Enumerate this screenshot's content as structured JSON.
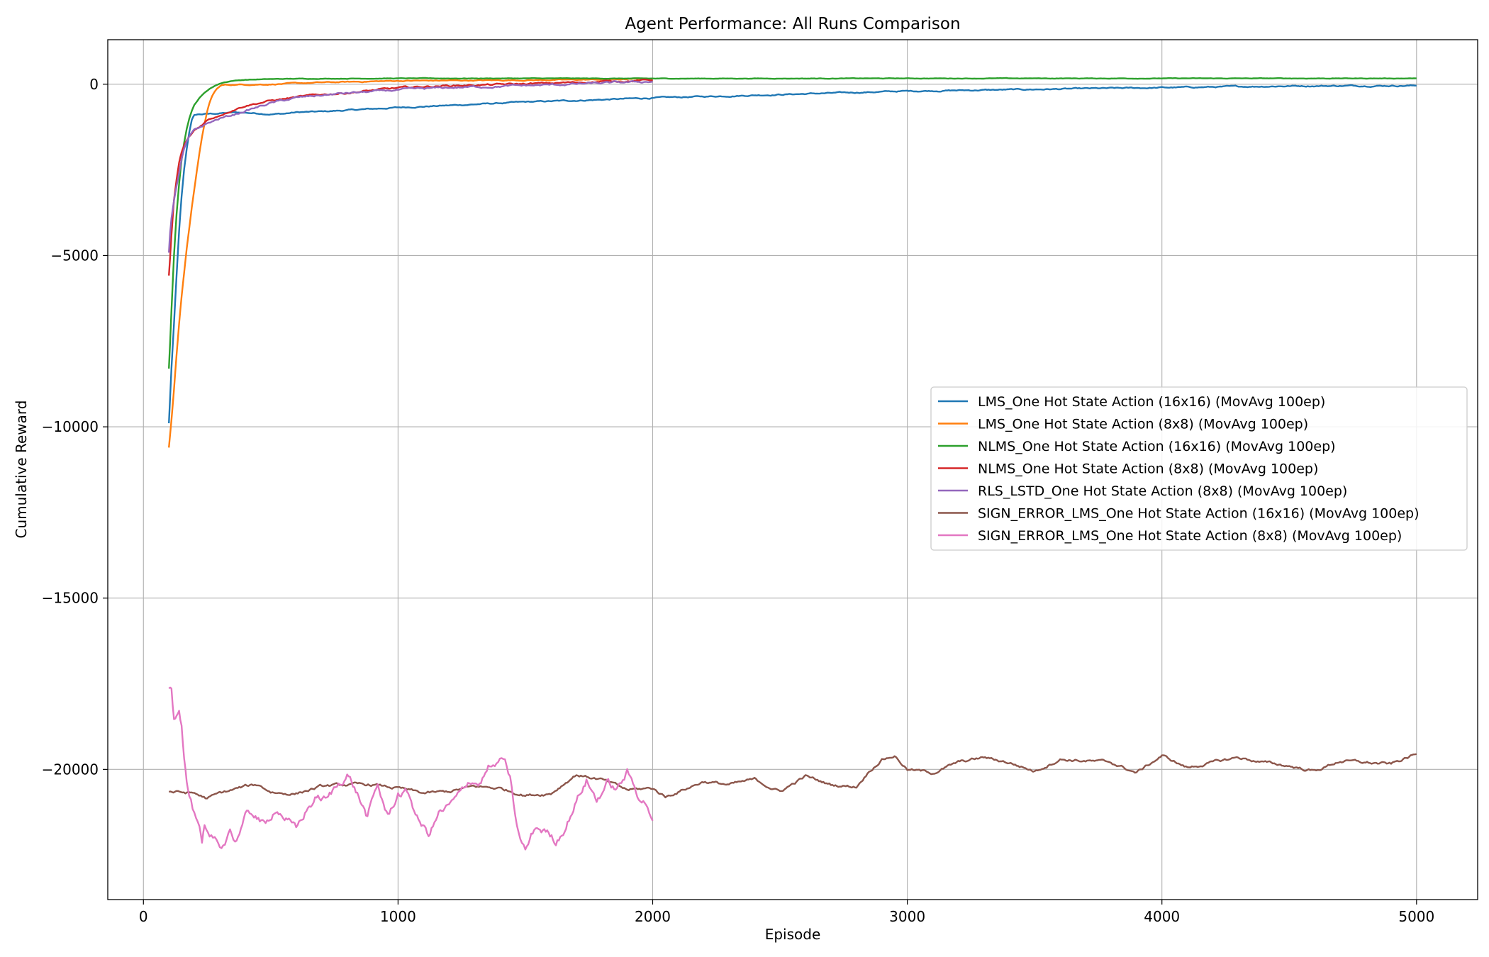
{
  "chart_data": {
    "type": "line",
    "title": "Agent Performance: All Runs Comparison",
    "xlabel": "Episode",
    "ylabel": "Cumulative Reward",
    "xlim": [
      -140,
      5240
    ],
    "ylim": [
      -23800,
      1300
    ],
    "xticks": [
      0,
      1000,
      2000,
      3000,
      4000,
      5000
    ],
    "yticks": [
      0,
      -5000,
      -10000,
      -15000,
      -20000
    ],
    "ytick_labels": [
      "0",
      "−5000",
      "−10000",
      "−15000",
      "−20000"
    ],
    "grid": true,
    "legend_position": "center-right",
    "series": [
      {
        "name": "LMS_One Hot State Action (16x16) (MovAvg 100ep)",
        "color": "#1f77b4",
        "noise": 25,
        "x": [
          100,
          110,
          120,
          130,
          140,
          150,
          160,
          170,
          180,
          190,
          200,
          220,
          250,
          300,
          350,
          400,
          450,
          500,
          550,
          600,
          700,
          800,
          900,
          1000,
          1200,
          1500,
          1800,
          2000,
          2500,
          3000,
          3500,
          4000,
          4500,
          5000
        ],
        "y": [
          -9900,
          -8300,
          -7000,
          -5600,
          -4300,
          -3300,
          -2500,
          -1900,
          -1400,
          -1050,
          -900,
          -880,
          -870,
          -850,
          -830,
          -830,
          -850,
          -870,
          -860,
          -820,
          -800,
          -760,
          -720,
          -680,
          -620,
          -520,
          -450,
          -400,
          -300,
          -200,
          -150,
          -100,
          -50,
          -40
        ]
      },
      {
        "name": "LMS_One Hot State Action (8x8) (MovAvg 100ep)",
        "color": "#ff7f0e",
        "noise": 20,
        "x": [
          100,
          110,
          120,
          130,
          140,
          150,
          160,
          170,
          180,
          190,
          200,
          210,
          220,
          230,
          240,
          250,
          260,
          270,
          280,
          290,
          300,
          310,
          320,
          350,
          400,
          500,
          700,
          1000,
          1500,
          2000
        ],
        "y": [
          -10600,
          -9800,
          -8900,
          -7900,
          -7000,
          -6200,
          -5500,
          -4800,
          -4200,
          -3600,
          -3050,
          -2500,
          -2000,
          -1550,
          -1150,
          -800,
          -550,
          -350,
          -220,
          -130,
          -60,
          -30,
          -20,
          -15,
          -10,
          0,
          50,
          100,
          120,
          150
        ]
      },
      {
        "name": "NLMS_One Hot State Action (16x16) (MovAvg 100ep)",
        "color": "#2ca02c",
        "noise": 10,
        "x": [
          100,
          105,
          110,
          115,
          120,
          130,
          140,
          150,
          160,
          170,
          180,
          190,
          200,
          220,
          240,
          260,
          280,
          300,
          320,
          350,
          400,
          500,
          600,
          800,
          1000,
          1500,
          2000,
          3000,
          4000,
          5000
        ],
        "y": [
          -8300,
          -7500,
          -6600,
          -5800,
          -5000,
          -3800,
          -2900,
          -2200,
          -1700,
          -1300,
          -1000,
          -780,
          -600,
          -400,
          -250,
          -130,
          -50,
          20,
          60,
          100,
          130,
          150,
          160,
          165,
          170,
          170,
          165,
          170,
          170,
          170
        ]
      },
      {
        "name": "NLMS_One Hot State Action (8x8) (MovAvg 100ep)",
        "color": "#d62728",
        "noise": 35,
        "x": [
          100,
          105,
          110,
          115,
          120,
          130,
          140,
          150,
          160,
          170,
          180,
          190,
          200,
          220,
          250,
          300,
          350,
          400,
          450,
          500,
          600,
          700,
          800,
          900,
          1000,
          1100,
          1200,
          1400,
          1600,
          1800,
          2000
        ],
        "y": [
          -5600,
          -5000,
          -4400,
          -3900,
          -3400,
          -2800,
          -2300,
          -2000,
          -1800,
          -1650,
          -1550,
          -1450,
          -1350,
          -1250,
          -1050,
          -900,
          -750,
          -620,
          -550,
          -480,
          -380,
          -300,
          -250,
          -180,
          -110,
          -70,
          -40,
          -10,
          30,
          80,
          120
        ]
      },
      {
        "name": "RLS_LSTD_One Hot State Action (8x8) (MovAvg 100ep)",
        "color": "#9467bd",
        "noise": 40,
        "x": [
          100,
          105,
          110,
          120,
          130,
          140,
          150,
          160,
          170,
          180,
          190,
          200,
          250,
          300,
          350,
          400,
          500,
          600,
          700,
          800,
          1000,
          1200,
          1400,
          1600,
          1800,
          2000
        ],
        "y": [
          -4900,
          -4300,
          -3900,
          -3400,
          -3000,
          -2600,
          -2200,
          -1900,
          -1700,
          -1550,
          -1450,
          -1350,
          -1150,
          -1000,
          -900,
          -780,
          -550,
          -400,
          -320,
          -260,
          -170,
          -100,
          -60,
          -20,
          30,
          80
        ]
      },
      {
        "name": "SIGN_ERROR_LMS_One Hot State Action (16x16) (MovAvg 100ep)",
        "color": "#8c564b",
        "noise": 60,
        "x": [
          100,
          200,
          250,
          300,
          400,
          450,
          500,
          550,
          600,
          700,
          800,
          900,
          1000,
          1100,
          1200,
          1300,
          1400,
          1500,
          1600,
          1700,
          1800,
          1900,
          2000,
          2050,
          2100,
          2200,
          2300,
          2400,
          2500,
          2600,
          2700,
          2800,
          2850,
          2900,
          2950,
          3000,
          3100,
          3200,
          3300,
          3400,
          3500,
          3600,
          3700,
          3800,
          3900,
          4000,
          4100,
          4200,
          4300,
          4400,
          4500,
          4600,
          4700,
          4800,
          4900,
          5000
        ],
        "y": [
          -20650,
          -20700,
          -20850,
          -20700,
          -20500,
          -20450,
          -20650,
          -20700,
          -20700,
          -20500,
          -20450,
          -20450,
          -20550,
          -20700,
          -20650,
          -20500,
          -20550,
          -20750,
          -20700,
          -20150,
          -20300,
          -20600,
          -20550,
          -20800,
          -20650,
          -20350,
          -20450,
          -20300,
          -20650,
          -20200,
          -20450,
          -20500,
          -20050,
          -19700,
          -19600,
          -20000,
          -20100,
          -19800,
          -19650,
          -19800,
          -20050,
          -19700,
          -19750,
          -19800,
          -20100,
          -19600,
          -19950,
          -19800,
          -19650,
          -19800,
          -19900,
          -20050,
          -19750,
          -19800,
          -19850,
          -19550
        ]
      },
      {
        "name": "SIGN_ERROR_LMS_One Hot State Action (8x8) (MovAvg 100ep)",
        "color": "#e377c2",
        "noise": 180,
        "x": [
          100,
          110,
          120,
          130,
          140,
          150,
          160,
          170,
          180,
          200,
          220,
          230,
          240,
          260,
          280,
          300,
          320,
          340,
          360,
          400,
          440,
          480,
          520,
          560,
          600,
          640,
          680,
          720,
          760,
          800,
          840,
          880,
          920,
          960,
          1000,
          1040,
          1080,
          1120,
          1160,
          1200,
          1240,
          1280,
          1320,
          1360,
          1380,
          1400,
          1420,
          1440,
          1460,
          1480,
          1500,
          1540,
          1580,
          1620,
          1660,
          1700,
          1740,
          1780,
          1820,
          1860,
          1900,
          1940,
          1980,
          2000
        ],
        "y": [
          -17700,
          -17600,
          -18500,
          -18300,
          -18100,
          -18600,
          -19500,
          -20300,
          -20700,
          -21300,
          -21800,
          -22300,
          -21800,
          -22200,
          -22100,
          -22300,
          -22100,
          -21700,
          -22100,
          -21400,
          -21300,
          -21700,
          -21100,
          -21400,
          -21800,
          -21200,
          -20800,
          -20900,
          -20500,
          -20100,
          -20700,
          -21400,
          -20500,
          -21400,
          -20700,
          -20700,
          -21500,
          -21900,
          -21300,
          -21100,
          -20800,
          -20300,
          -20400,
          -19900,
          -20000,
          -19700,
          -19900,
          -20300,
          -21400,
          -22100,
          -22400,
          -21700,
          -21800,
          -22100,
          -21600,
          -20900,
          -20300,
          -20900,
          -20400,
          -20600,
          -20100,
          -20700,
          -21000,
          -21500
        ]
      }
    ]
  }
}
